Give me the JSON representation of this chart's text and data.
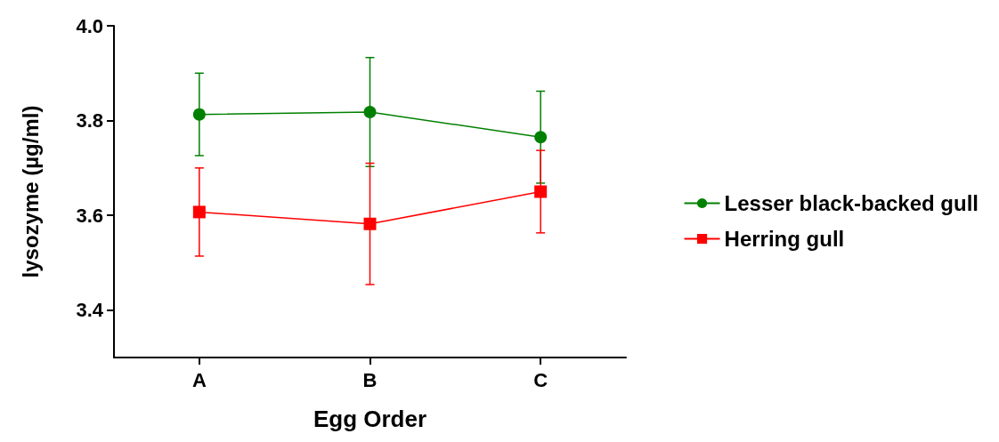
{
  "chart_data": {
    "type": "line",
    "xlabel": "Egg Order",
    "ylabel": "lysozyme (µg/ml)",
    "categories": [
      "A",
      "B",
      "C"
    ],
    "series": [
      {
        "name": "Lesser black-backed gull",
        "color": "#008000",
        "marker": "circle",
        "values": [
          3.813,
          3.818,
          3.765
        ],
        "errors": [
          0.087,
          0.115,
          0.097
        ]
      },
      {
        "name": "Herring gull",
        "color": "#ff0000",
        "marker": "square",
        "values": [
          3.607,
          3.582,
          3.65
        ],
        "errors": [
          0.093,
          0.128,
          0.087
        ]
      }
    ],
    "ylim": [
      3.3,
      4.0
    ],
    "yticks": [
      3.4,
      3.6,
      3.8,
      {
        "value": 4.0,
        "label": "4.0"
      }
    ],
    "grid": false,
    "legend": "right"
  }
}
